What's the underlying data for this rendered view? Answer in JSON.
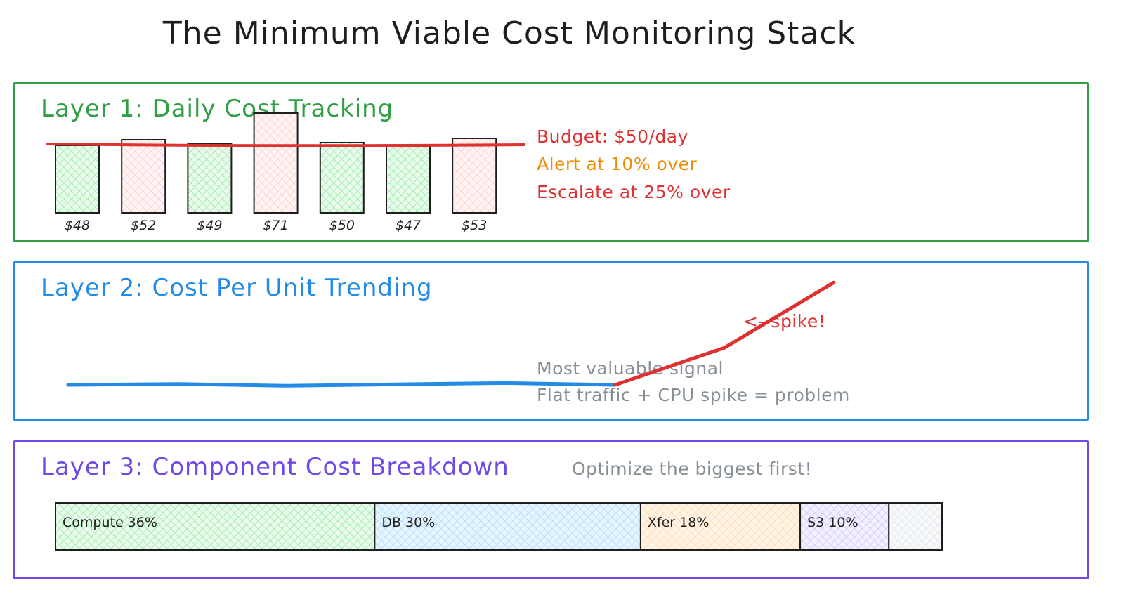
{
  "title": "The Minimum Viable Cost Monitoring Stack",
  "colors": {
    "green": "#2f9e44",
    "blue": "#228be6",
    "purple": "#7048e8",
    "red": "#e03131",
    "orange": "#f08c00",
    "gray": "#868e96"
  },
  "layer1": {
    "title": "Layer 1: Daily Cost Tracking",
    "budget_note": "Budget: $50/day",
    "alert_note": "Alert at 10% over",
    "escalate_note": "Escalate at 25% over"
  },
  "layer2": {
    "title": "Layer 2: Cost Per Unit Trending",
    "spike_label": "<- spike!",
    "signal_note": "Most valuable signal",
    "problem_note": "Flat traffic + CPU spike = problem"
  },
  "layer3": {
    "title": "Layer 3: Component Cost Breakdown",
    "optimize_note": "Optimize the biggest first!"
  },
  "chart_data": [
    {
      "type": "bar",
      "categories": [
        "$48",
        "$52",
        "$49",
        "$71",
        "$50",
        "$47",
        "$53"
      ],
      "values": [
        48,
        52,
        49,
        71,
        50,
        47,
        53
      ],
      "threshold": 50,
      "over_budget_color": "#ffc9c9",
      "ok_color": "#b2f2bb"
    },
    {
      "type": "line",
      "x": [
        0,
        1,
        2,
        3,
        4,
        5,
        6,
        7
      ],
      "series": [
        {
          "values": [
            1.0,
            1.02,
            0.98,
            1.01,
            1.04,
            1.0,
            1.8,
            2.3
          ]
        }
      ],
      "spike_start_index": 5
    },
    {
      "type": "bar",
      "stacked": true,
      "segments": [
        {
          "label": "Compute 36%",
          "value": 36,
          "color": "#b2f2bb"
        },
        {
          "label": "DB 30%",
          "value": 30,
          "color": "#a5d8ff"
        },
        {
          "label": "Xfer 18%",
          "value": 18,
          "color": "#ffd8a8"
        },
        {
          "label": "S3 10%",
          "value": 10,
          "color": "#d0bfff"
        },
        {
          "label": "",
          "value": 6,
          "color": "#dee2e6"
        }
      ]
    }
  ]
}
